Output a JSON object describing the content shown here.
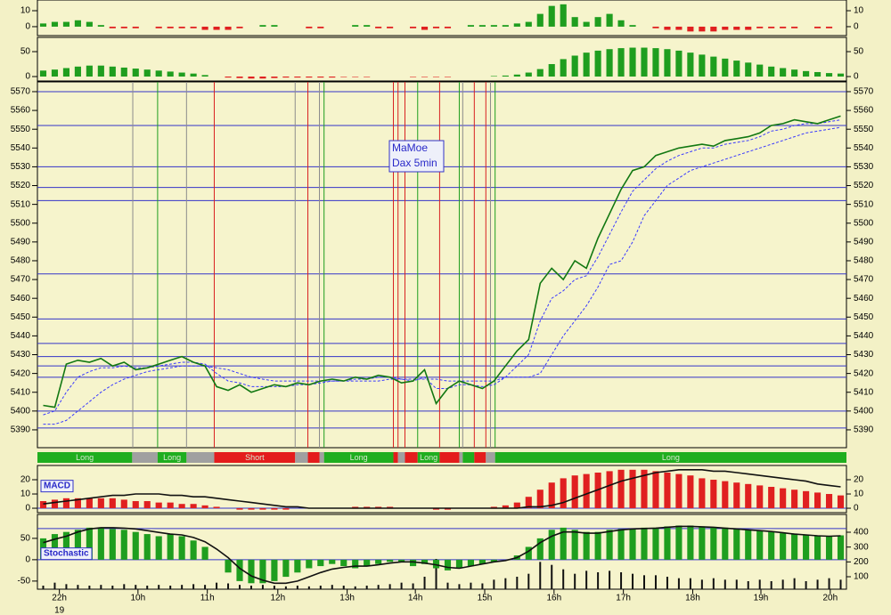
{
  "chart_data": [
    {
      "type": "bar",
      "xlim": [
        0,
        70
      ],
      "ylim": [
        -5.6,
        16.7
      ],
      "yticks": [
        0,
        10
      ],
      "mirror_yticks": true,
      "pos_color": "#1f9e1f",
      "neg_color": "#e02020",
      "series": [
        {
          "type": "bar",
          "values": [
            2,
            3,
            3,
            4,
            3,
            1,
            -1,
            -1,
            -1,
            0,
            -1,
            -1,
            -1,
            -1,
            -2,
            -2,
            -2,
            -1,
            0,
            1,
            1,
            0,
            0,
            -1,
            -1,
            0,
            0,
            1,
            1,
            -1,
            -1,
            0,
            -1,
            -2,
            -1,
            -1,
            0,
            1,
            1,
            1,
            1,
            2,
            3,
            8,
            13,
            14,
            6,
            3,
            6,
            8,
            4,
            1,
            0,
            -1,
            -2,
            -2,
            -3,
            -3,
            -3,
            -2,
            -2,
            -2,
            -1,
            -1,
            -1,
            -1,
            0,
            -1,
            -1,
            0
          ]
        }
      ]
    },
    {
      "type": "bar",
      "xlim": [
        0,
        70
      ],
      "ylim": [
        -8.9,
        78.6
      ],
      "yticks": [
        0,
        50
      ],
      "mirror_yticks": true,
      "pos_color": "#1f9e1f",
      "neg_color": "#e02020",
      "series": [
        {
          "type": "bar",
          "values": [
            12,
            14,
            17,
            20,
            22,
            22,
            20,
            18,
            16,
            14,
            12,
            10,
            8,
            6,
            3,
            0,
            -2,
            -3,
            -4,
            -4,
            -3,
            -2,
            -2,
            -2,
            -2,
            -2,
            -1,
            -1,
            -1,
            0,
            0,
            0,
            -1,
            -1,
            -1,
            -1,
            0,
            0,
            0,
            1,
            2,
            4,
            8,
            15,
            25,
            35,
            42,
            48,
            52,
            55,
            57,
            58,
            58,
            57,
            55,
            52,
            48,
            44,
            40,
            36,
            32,
            28,
            24,
            20,
            17,
            14,
            11,
            9,
            7,
            6
          ]
        }
      ]
    },
    {
      "type": "line",
      "title": "MaMoe",
      "subtitle": "Dax 5min",
      "xlim": [
        0,
        70
      ],
      "ylim": [
        5380.5,
        5575.2
      ],
      "yticks": [
        5390,
        5400,
        5410,
        5420,
        5430,
        5440,
        5450,
        5460,
        5470,
        5480,
        5490,
        5500,
        5510,
        5520,
        5530,
        5540,
        5550,
        5560,
        5570
      ],
      "mirror_yticks": true,
      "levels": [
        5391,
        5400,
        5418,
        5424,
        5429,
        5436,
        5449,
        5473,
        5512,
        5519,
        5530,
        5552,
        5570
      ],
      "level_color": "#3434c8",
      "signals": [
        {
          "x": 8.25,
          "color": "#8c8c8c"
        },
        {
          "x": 10.4,
          "color": "#1f9e1f"
        },
        {
          "x": 12.9,
          "color": "#8c8c8c"
        },
        {
          "x": 15.3,
          "color": "#d82020"
        },
        {
          "x": 22.3,
          "color": "#8c8c8c"
        },
        {
          "x": 23.4,
          "color": "#d82020"
        },
        {
          "x": 24.4,
          "color": "#8c8c8c"
        },
        {
          "x": 24.8,
          "color": "#1f9e1f"
        },
        {
          "x": 30.8,
          "color": "#d82020"
        },
        {
          "x": 31.2,
          "color": "#d82020"
        },
        {
          "x": 31.8,
          "color": "#d82020"
        },
        {
          "x": 32.9,
          "color": "#1f9e1f"
        },
        {
          "x": 34.8,
          "color": "#d82020"
        },
        {
          "x": 36.5,
          "color": "#1f9e1f"
        },
        {
          "x": 36.8,
          "color": "#8c8c8c"
        },
        {
          "x": 37.8,
          "color": "#d82020"
        },
        {
          "x": 38.8,
          "color": "#d82020"
        },
        {
          "x": 39.2,
          "color": "#8c8c8c"
        },
        {
          "x": 39.6,
          "color": "#1f9e1f"
        }
      ],
      "regions": [
        {
          "start": 0,
          "end": 8.2,
          "color": "#1fae1f",
          "label": "Long"
        },
        {
          "start": 8.2,
          "end": 10.4,
          "color": "#a0a0a0"
        },
        {
          "start": 10.4,
          "end": 12.9,
          "color": "#1fae1f",
          "label": "Long"
        },
        {
          "start": 12.9,
          "end": 15.3,
          "color": "#a0a0a0"
        },
        {
          "start": 15.3,
          "end": 22.3,
          "color": "#e41c1c",
          "label": "Short"
        },
        {
          "start": 22.3,
          "end": 23.4,
          "color": "#a0a0a0"
        },
        {
          "start": 23.4,
          "end": 24.4,
          "color": "#e41c1c"
        },
        {
          "start": 24.4,
          "end": 24.8,
          "color": "#a0a0a0"
        },
        {
          "start": 24.8,
          "end": 30.8,
          "color": "#1fae1f",
          "label": "Long"
        },
        {
          "start": 30.8,
          "end": 31.2,
          "color": "#e41c1c"
        },
        {
          "start": 31.2,
          "end": 31.8,
          "color": "#a0a0a0"
        },
        {
          "start": 31.8,
          "end": 32.9,
          "color": "#e41c1c"
        },
        {
          "start": 32.9,
          "end": 34.8,
          "color": "#1fae1f",
          "label": "Long"
        },
        {
          "start": 34.8,
          "end": 36.5,
          "color": "#e41c1c"
        },
        {
          "start": 36.5,
          "end": 36.8,
          "color": "#a0a0a0"
        },
        {
          "start": 36.8,
          "end": 37.8,
          "color": "#1fae1f"
        },
        {
          "start": 37.8,
          "end": 38.8,
          "color": "#e41c1c"
        },
        {
          "start": 38.8,
          "end": 39.6,
          "color": "#a0a0a0"
        },
        {
          "start": 39.6,
          "end": 70,
          "color": "#1fae1f",
          "label": "Long"
        }
      ],
      "series": [
        {
          "type": "line",
          "color": "#3a3aff",
          "dash": true,
          "values": [
            5393,
            5393,
            5395,
            5400,
            5405,
            5410,
            5414,
            5417,
            5419,
            5421,
            5422,
            5423,
            5424,
            5424,
            5424,
            5423,
            5422,
            5420,
            5418,
            5417,
            5416,
            5416,
            5416,
            5416,
            5416,
            5416,
            5416,
            5416,
            5416,
            5416,
            5417,
            5417,
            5417,
            5417,
            5417,
            5416,
            5416,
            5416,
            5416,
            5416,
            5418,
            5418,
            5418,
            5420,
            5430,
            5440,
            5448,
            5456,
            5466,
            5478,
            5480,
            5490,
            5504,
            5512,
            5520,
            5524,
            5528,
            5530,
            5532,
            5534,
            5536,
            5538,
            5540,
            5542,
            5544,
            5546,
            5548,
            5549,
            5550,
            5551
          ]
        },
        {
          "type": "line",
          "color": "#3a3aff",
          "dash": true,
          "values": [
            5398,
            5400,
            5410,
            5418,
            5421,
            5423,
            5423,
            5424,
            5423,
            5423,
            5424,
            5425,
            5426,
            5426,
            5425,
            5420,
            5416,
            5415,
            5413,
            5413,
            5413,
            5413,
            5414,
            5414,
            5415,
            5416,
            5416,
            5417,
            5417,
            5418,
            5418,
            5417,
            5416,
            5418,
            5412,
            5412,
            5414,
            5414,
            5413,
            5414,
            5418,
            5424,
            5430,
            5448,
            5460,
            5464,
            5470,
            5472,
            5482,
            5494,
            5506,
            5517,
            5523,
            5529,
            5533,
            5536,
            5538,
            5540,
            5540,
            5542,
            5543,
            5544,
            5546,
            5549,
            5550,
            5552,
            5553,
            5553,
            5554,
            5555
          ]
        },
        {
          "type": "line",
          "color": "#127812",
          "values": [
            5403,
            5402,
            5425,
            5427,
            5426,
            5428,
            5424,
            5426,
            5422,
            5423,
            5425,
            5427,
            5429,
            5426,
            5424,
            5413,
            5411,
            5414,
            5410,
            5412,
            5414,
            5413,
            5415,
            5414,
            5416,
            5417,
            5416,
            5418,
            5417,
            5419,
            5418,
            5415,
            5416,
            5422,
            5404,
            5412,
            5416,
            5414,
            5412,
            5416,
            5424,
            5432,
            5438,
            5468,
            5476,
            5470,
            5480,
            5476,
            5492,
            5505,
            5518,
            5528,
            5530,
            5536,
            5538,
            5540,
            5541,
            5542,
            5541,
            5544,
            5545,
            5546,
            5548,
            5552,
            5553,
            5555,
            5554,
            5553,
            5555,
            5557
          ]
        }
      ]
    },
    {
      "type": "combo",
      "label": "MACD",
      "xlim": [
        0,
        70
      ],
      "ylim": [
        -3.1,
        30
      ],
      "yticks": [
        0,
        10,
        20
      ],
      "mirror_yticks": true,
      "level_color": "#3434c8",
      "levels": [
        0
      ],
      "series": [
        {
          "type": "bar",
          "color": "#e02020",
          "values": [
            5,
            6,
            7,
            7,
            7,
            7,
            7,
            6,
            5,
            5,
            4,
            4,
            3,
            3,
            2,
            1,
            0,
            -1,
            -1,
            -1,
            -1,
            -1,
            0,
            0,
            0,
            0,
            0,
            1,
            1,
            1,
            1,
            0,
            0,
            0,
            -1,
            -1,
            0,
            0,
            0,
            1,
            2,
            4,
            8,
            13,
            18,
            21,
            23,
            24,
            25,
            26,
            27,
            27,
            27,
            26,
            25,
            24,
            23,
            21,
            20,
            19,
            18,
            17,
            16,
            15,
            14,
            13,
            12,
            11,
            10,
            9
          ]
        },
        {
          "type": "line",
          "color": "#111111",
          "values": [
            3,
            4,
            5,
            6,
            7,
            8,
            9,
            9,
            10,
            10,
            10,
            9,
            9,
            8,
            8,
            7,
            6,
            5,
            4,
            3,
            2,
            1,
            1,
            0,
            0,
            0,
            0,
            0,
            0,
            0,
            0,
            0,
            0,
            0,
            0,
            0,
            0,
            0,
            0,
            0,
            0,
            0,
            1,
            1,
            2,
            4,
            7,
            10,
            13,
            16,
            19,
            21,
            23,
            25,
            26,
            27,
            27,
            27,
            26,
            26,
            25,
            24,
            23,
            22,
            21,
            20,
            19,
            17,
            16,
            15
          ]
        }
      ]
    },
    {
      "type": "combo",
      "label": "Stochastic",
      "xlim": [
        0,
        70
      ],
      "ylim": [
        -69,
        106
      ],
      "yticks": [
        -50,
        0,
        50
      ],
      "y2lim": [
        16,
        520
      ],
      "y2ticks": [
        100,
        200,
        300,
        400
      ],
      "level_color": "#3434c8",
      "levels": [
        73,
        0
      ],
      "xticks": [
        {
          "value": 1.9,
          "label": "22h"
        },
        {
          "value": 8.7,
          "label": "10h"
        },
        {
          "value": 14.7,
          "label": "11h"
        },
        {
          "value": 20.8,
          "label": "12h"
        },
        {
          "value": 26.8,
          "label": "13h"
        },
        {
          "value": 32.7,
          "label": "14h"
        },
        {
          "value": 38.7,
          "label": "15h"
        },
        {
          "value": 44.7,
          "label": "16h"
        },
        {
          "value": 50.7,
          "label": "17h"
        },
        {
          "value": 56.7,
          "label": "18h"
        },
        {
          "value": 62.6,
          "label": "19h"
        },
        {
          "value": 68.6,
          "label": "20h"
        }
      ],
      "date_label": {
        "value": 1.9,
        "label": "19"
      },
      "series": [
        {
          "type": "bar",
          "axis": "y2",
          "color": "#111111",
          "values": [
            40,
            60,
            50,
            45,
            40,
            45,
            40,
            50,
            45,
            40,
            45,
            40,
            45,
            50,
            45,
            60,
            55,
            45,
            40,
            45,
            40,
            35,
            40,
            35,
            40,
            45,
            40,
            35,
            40,
            45,
            50,
            60,
            55,
            100,
            220,
            60,
            50,
            60,
            55,
            80,
            90,
            100,
            120,
            200,
            180,
            150,
            120,
            140,
            130,
            140,
            130,
            120,
            110,
            110,
            100,
            90,
            90,
            80,
            90,
            80,
            80,
            70,
            80,
            70,
            80,
            90,
            70,
            80,
            90,
            80
          ]
        },
        {
          "type": "bar",
          "color": "#1f9e1f",
          "values": [
            50,
            60,
            65,
            70,
            75,
            75,
            72,
            70,
            65,
            60,
            55,
            60,
            55,
            45,
            30,
            0,
            -30,
            -50,
            -55,
            -55,
            -50,
            -40,
            -30,
            -20,
            -15,
            -10,
            -15,
            -20,
            -15,
            -10,
            -5,
            -5,
            -15,
            -10,
            -20,
            -25,
            -20,
            -15,
            -10,
            -5,
            0,
            10,
            30,
            50,
            70,
            75,
            70,
            65,
            65,
            70,
            72,
            72,
            75,
            75,
            78,
            80,
            80,
            78,
            76,
            75,
            72,
            70,
            68,
            65,
            62,
            60,
            58,
            56,
            55,
            57
          ]
        },
        {
          "type": "line",
          "color": "#111111",
          "values": [
            40,
            48,
            55,
            65,
            72,
            75,
            75,
            74,
            72,
            68,
            64,
            60,
            58,
            52,
            42,
            25,
            5,
            -20,
            -38,
            -48,
            -55,
            -55,
            -50,
            -40,
            -30,
            -22,
            -18,
            -15,
            -15,
            -12,
            -8,
            -5,
            -5,
            -8,
            -12,
            -18,
            -20,
            -15,
            -10,
            -5,
            -2,
            5,
            20,
            40,
            55,
            65,
            65,
            62,
            62,
            66,
            70,
            72,
            73,
            74,
            76,
            78,
            78,
            77,
            76,
            74,
            72,
            70,
            68,
            66,
            63,
            60,
            58,
            56,
            55,
            56
          ]
        }
      ]
    }
  ]
}
